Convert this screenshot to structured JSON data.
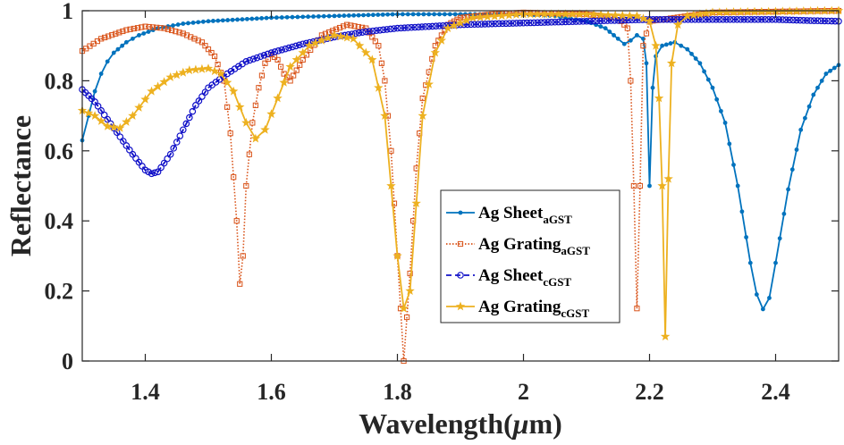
{
  "chart_data": {
    "type": "line",
    "title": "",
    "xlabel": "Wavelength(",
    "xlabel_unit_greek": "μ",
    "xlabel_unit": "m)",
    "ylabel": "Reflectance",
    "xlim": [
      1.3,
      2.5
    ],
    "ylim": [
      0,
      1
    ],
    "x_ticks": [
      1.4,
      1.6,
      1.8,
      2.0,
      2.2,
      2.4
    ],
    "x_tick_labels": [
      "1.4",
      "1.6",
      "1.8",
      "2",
      "2.2",
      "2.4"
    ],
    "y_ticks": [
      0,
      0.2,
      0.4,
      0.6,
      0.8,
      1.0
    ],
    "y_tick_labels": [
      "0",
      "0.2",
      "0.4",
      "0.6",
      "0.8",
      "1"
    ],
    "grid": false,
    "legend_position": "center-right",
    "series": [
      {
        "name": "Ag Sheet",
        "subscript": "aGST",
        "color": "#0072BD",
        "marker": "dot",
        "linestyle": "solid",
        "points": [
          [
            1.3,
            0.63
          ],
          [
            1.31,
            0.7
          ],
          [
            1.32,
            0.77
          ],
          [
            1.33,
            0.82
          ],
          [
            1.34,
            0.855
          ],
          [
            1.35,
            0.88
          ],
          [
            1.37,
            0.91
          ],
          [
            1.39,
            0.93
          ],
          [
            1.42,
            0.95
          ],
          [
            1.46,
            0.963
          ],
          [
            1.5,
            0.97
          ],
          [
            1.6,
            0.98
          ],
          [
            1.7,
            0.985
          ],
          [
            1.8,
            0.99
          ],
          [
            1.9,
            0.99
          ],
          [
            2.0,
            0.99
          ],
          [
            2.05,
            0.985
          ],
          [
            2.1,
            0.97
          ],
          [
            2.13,
            0.95
          ],
          [
            2.15,
            0.92
          ],
          [
            2.16,
            0.905
          ],
          [
            2.17,
            0.915
          ],
          [
            2.18,
            0.93
          ],
          [
            2.19,
            0.92
          ],
          [
            2.195,
            0.85
          ],
          [
            2.2,
            0.5
          ],
          [
            2.205,
            0.78
          ],
          [
            2.21,
            0.87
          ],
          [
            2.22,
            0.9
          ],
          [
            2.24,
            0.91
          ],
          [
            2.26,
            0.89
          ],
          [
            2.28,
            0.85
          ],
          [
            2.3,
            0.78
          ],
          [
            2.32,
            0.68
          ],
          [
            2.34,
            0.5
          ],
          [
            2.36,
            0.28
          ],
          [
            2.37,
            0.19
          ],
          [
            2.38,
            0.148
          ],
          [
            2.39,
            0.18
          ],
          [
            2.4,
            0.28
          ],
          [
            2.42,
            0.49
          ],
          [
            2.44,
            0.66
          ],
          [
            2.46,
            0.76
          ],
          [
            2.48,
            0.82
          ],
          [
            2.5,
            0.845
          ]
        ]
      },
      {
        "name": "Ag Grating",
        "subscript": "aGST",
        "color": "#D95319",
        "marker": "square",
        "linestyle": "dotted",
        "points": [
          [
            1.3,
            0.885
          ],
          [
            1.33,
            0.92
          ],
          [
            1.37,
            0.945
          ],
          [
            1.4,
            0.955
          ],
          [
            1.43,
            0.95
          ],
          [
            1.46,
            0.935
          ],
          [
            1.49,
            0.91
          ],
          [
            1.51,
            0.87
          ],
          [
            1.525,
            0.8
          ],
          [
            1.535,
            0.65
          ],
          [
            1.545,
            0.4
          ],
          [
            1.55,
            0.22
          ],
          [
            1.555,
            0.3
          ],
          [
            1.56,
            0.5
          ],
          [
            1.57,
            0.68
          ],
          [
            1.58,
            0.78
          ],
          [
            1.59,
            0.85
          ],
          [
            1.6,
            0.875
          ],
          [
            1.61,
            0.86
          ],
          [
            1.62,
            0.82
          ],
          [
            1.63,
            0.8
          ],
          [
            1.65,
            0.86
          ],
          [
            1.68,
            0.93
          ],
          [
            1.72,
            0.96
          ],
          [
            1.75,
            0.95
          ],
          [
            1.77,
            0.9
          ],
          [
            1.78,
            0.8
          ],
          [
            1.79,
            0.6
          ],
          [
            1.8,
            0.3
          ],
          [
            1.81,
            0.0
          ],
          [
            1.82,
            0.25
          ],
          [
            1.83,
            0.55
          ],
          [
            1.84,
            0.75
          ],
          [
            1.86,
            0.9
          ],
          [
            1.88,
            0.96
          ],
          [
            1.9,
            0.98
          ],
          [
            1.95,
            0.99
          ],
          [
            2.0,
            0.995
          ],
          [
            2.1,
            0.99
          ],
          [
            2.15,
            0.98
          ],
          [
            2.165,
            0.95
          ],
          [
            2.17,
            0.8
          ],
          [
            2.175,
            0.5
          ],
          [
            2.18,
            0.15
          ],
          [
            2.185,
            0.5
          ],
          [
            2.19,
            0.9
          ],
          [
            2.2,
            0.97
          ],
          [
            2.3,
            0.995
          ],
          [
            2.5,
            1.0
          ]
        ]
      },
      {
        "name": "Ag Sheet",
        "subscript": "cGST",
        "color": "#1010C8",
        "marker": "circle",
        "linestyle": "dashed",
        "points": [
          [
            1.3,
            0.775
          ],
          [
            1.32,
            0.74
          ],
          [
            1.34,
            0.69
          ],
          [
            1.36,
            0.64
          ],
          [
            1.38,
            0.59
          ],
          [
            1.4,
            0.545
          ],
          [
            1.41,
            0.535
          ],
          [
            1.42,
            0.54
          ],
          [
            1.44,
            0.59
          ],
          [
            1.46,
            0.66
          ],
          [
            1.48,
            0.73
          ],
          [
            1.5,
            0.78
          ],
          [
            1.53,
            0.82
          ],
          [
            1.56,
            0.855
          ],
          [
            1.6,
            0.88
          ],
          [
            1.65,
            0.905
          ],
          [
            1.7,
            0.925
          ],
          [
            1.75,
            0.94
          ],
          [
            1.8,
            0.95
          ],
          [
            1.9,
            0.96
          ],
          [
            2.0,
            0.965
          ],
          [
            2.1,
            0.97
          ],
          [
            2.2,
            0.975
          ],
          [
            2.3,
            0.975
          ],
          [
            2.4,
            0.975
          ],
          [
            2.45,
            0.972
          ],
          [
            2.5,
            0.97
          ]
        ]
      },
      {
        "name": "Ag Grating",
        "subscript": "cGST",
        "color": "#EDB120",
        "marker": "star",
        "linestyle": "solid",
        "points": [
          [
            1.3,
            0.715
          ],
          [
            1.32,
            0.7
          ],
          [
            1.34,
            0.67
          ],
          [
            1.36,
            0.665
          ],
          [
            1.38,
            0.7
          ],
          [
            1.41,
            0.77
          ],
          [
            1.44,
            0.81
          ],
          [
            1.47,
            0.83
          ],
          [
            1.5,
            0.835
          ],
          [
            1.52,
            0.82
          ],
          [
            1.54,
            0.77
          ],
          [
            1.56,
            0.68
          ],
          [
            1.575,
            0.635
          ],
          [
            1.59,
            0.66
          ],
          [
            1.61,
            0.75
          ],
          [
            1.63,
            0.84
          ],
          [
            1.66,
            0.9
          ],
          [
            1.7,
            0.93
          ],
          [
            1.73,
            0.92
          ],
          [
            1.76,
            0.86
          ],
          [
            1.78,
            0.7
          ],
          [
            1.79,
            0.5
          ],
          [
            1.8,
            0.3
          ],
          [
            1.81,
            0.15
          ],
          [
            1.82,
            0.2
          ],
          [
            1.83,
            0.45
          ],
          [
            1.84,
            0.7
          ],
          [
            1.86,
            0.88
          ],
          [
            1.88,
            0.95
          ],
          [
            1.92,
            0.98
          ],
          [
            2.0,
            0.99
          ],
          [
            2.1,
            0.99
          ],
          [
            2.18,
            0.985
          ],
          [
            2.2,
            0.97
          ],
          [
            2.21,
            0.9
          ],
          [
            2.215,
            0.75
          ],
          [
            2.22,
            0.5
          ],
          [
            2.225,
            0.07
          ],
          [
            2.23,
            0.52
          ],
          [
            2.235,
            0.85
          ],
          [
            2.245,
            0.96
          ],
          [
            2.26,
            0.985
          ],
          [
            2.3,
            0.995
          ],
          [
            2.5,
            1.0
          ]
        ]
      }
    ]
  }
}
